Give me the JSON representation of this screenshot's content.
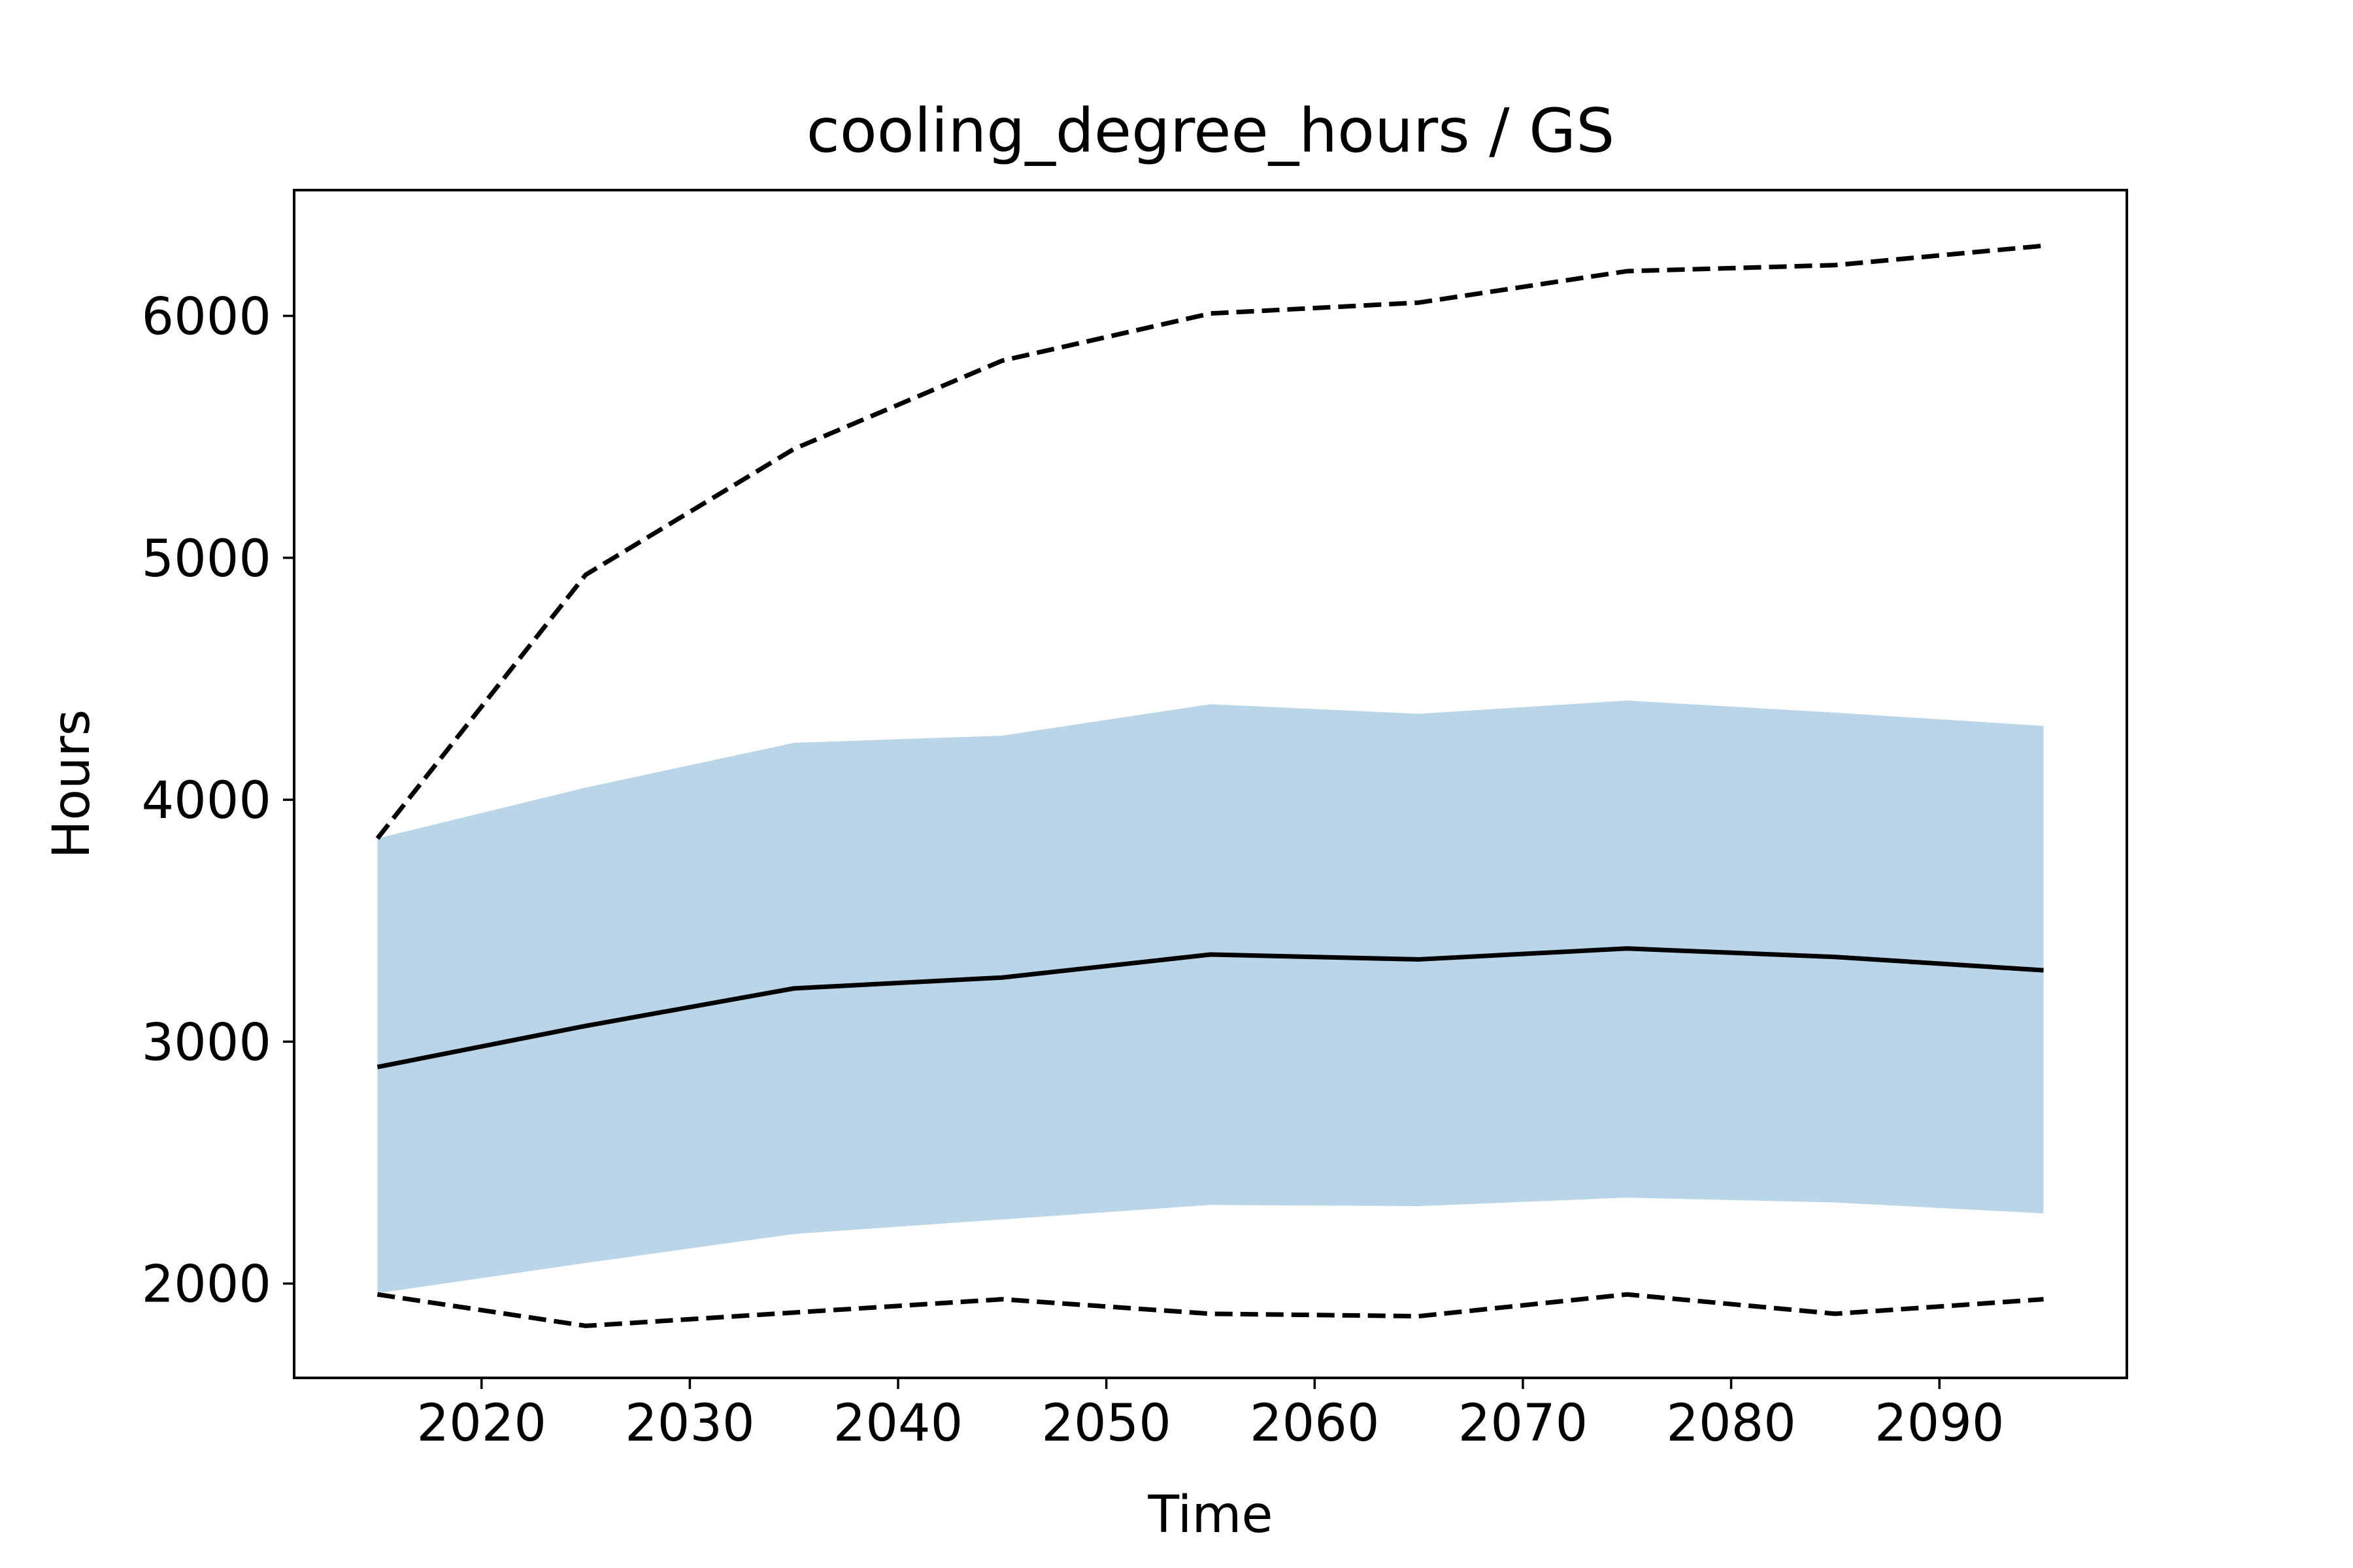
{
  "chart_data": {
    "type": "line",
    "title": "cooling_degree_hours / GS",
    "xlabel": "Time",
    "ylabel": "Hours",
    "xlim": [
      2011,
      2099
    ],
    "ylim": [
      1610,
      6520
    ],
    "xticks": [
      2020,
      2030,
      2040,
      2050,
      2060,
      2070,
      2080,
      2090
    ],
    "yticks": [
      2000,
      3000,
      4000,
      5000,
      6000
    ],
    "grid": false,
    "x": [
      2015,
      2025,
      2035,
      2045,
      2055,
      2065,
      2075,
      2085,
      2095
    ],
    "series": [
      {
        "role": "median",
        "style": "solid",
        "values": [
          2895,
          3065,
          3220,
          3265,
          3360,
          3340,
          3385,
          3350,
          3295
        ]
      },
      {
        "role": "max",
        "style": "dashed",
        "values": [
          3840,
          4930,
          5450,
          5815,
          6010,
          6055,
          6185,
          6210,
          6290
        ]
      },
      {
        "role": "min",
        "style": "dashed",
        "values": [
          1955,
          1825,
          1880,
          1935,
          1875,
          1865,
          1955,
          1875,
          1935
        ]
      }
    ],
    "band": {
      "upper": [
        3840,
        4050,
        4235,
        4265,
        4395,
        4355,
        4410,
        4360,
        4305
      ],
      "lower": [
        1960,
        2085,
        2205,
        2265,
        2325,
        2320,
        2355,
        2335,
        2290
      ],
      "color": "#bad5e8"
    },
    "line_color": "#000000"
  }
}
